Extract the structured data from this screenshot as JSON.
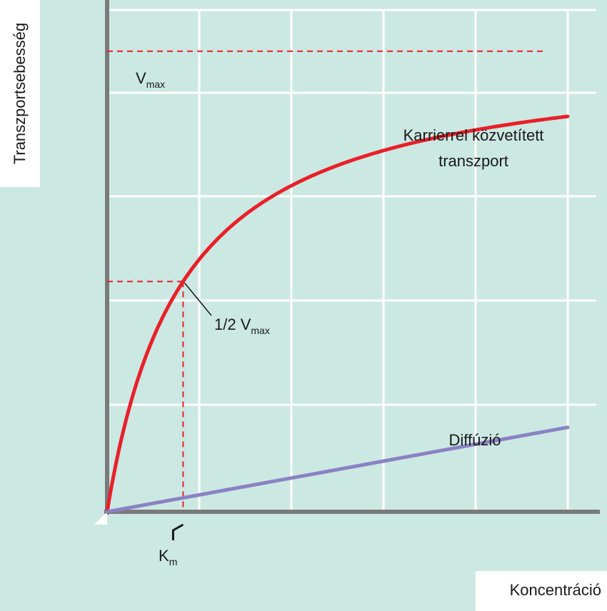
{
  "chart_data": {
    "type": "line",
    "xlabel": "Koncentráció",
    "ylabel": "Transzportsebesség",
    "x_range": [
      0,
      1
    ],
    "y_range": [
      0,
      1
    ],
    "grid": true,
    "series": [
      {
        "name": "Karrierrel közvetített transzport",
        "label_lines": [
          "Karrierrel közvetített",
          "transzport"
        ],
        "color": "#e8202a",
        "model": "michaelis-menten",
        "vmax": 0.9,
        "km": 0.165
      },
      {
        "name": "Diffúzió",
        "color": "#8a82c4",
        "model": "linear",
        "points": [
          [
            0,
            0
          ],
          [
            1,
            0.165
          ]
        ]
      }
    ],
    "annotations": {
      "vmax_main": "V",
      "vmax_sub": "max",
      "half_vmax_main": "1/2 V",
      "half_vmax_sub": "max",
      "km_main": "K",
      "km_sub": "m"
    },
    "colors": {
      "background": "#cce8e2",
      "grid": "#ffffff",
      "axis": "#7a7a7a",
      "guide": "#e8202a"
    }
  }
}
